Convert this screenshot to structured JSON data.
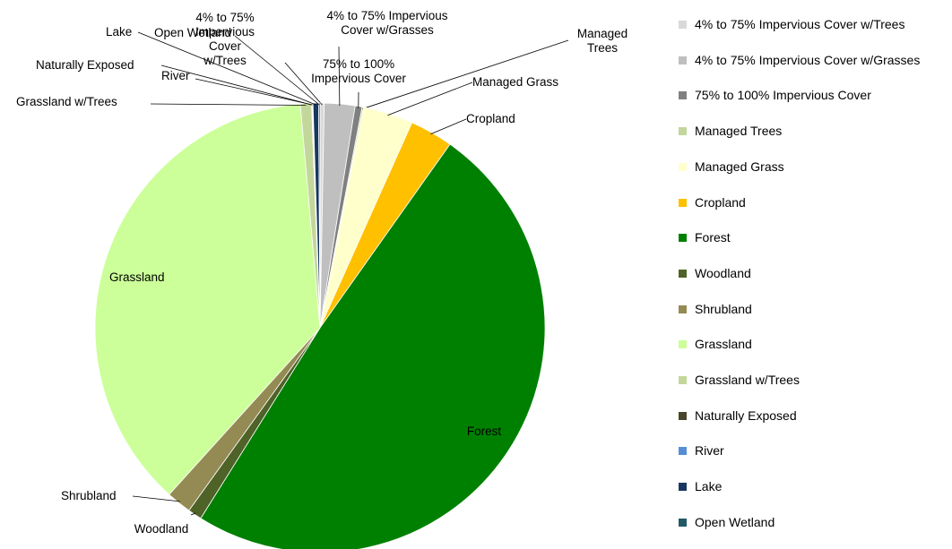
{
  "chart_data": {
    "type": "pie",
    "categories": [
      "4% to 75% Impervious Cover w/Trees",
      "4% to 75% Impervious Cover w/Grasses",
      "75% to 100% Impervious Cover",
      "Managed Trees",
      "Managed Grass",
      "Cropland",
      "Forest",
      "Woodland",
      "Shrubland",
      "Grassland",
      "Grassland w/Trees",
      "Naturally Exposed",
      "River",
      "Lake",
      "Open Wetland"
    ],
    "values": [
      0.3,
      2.2,
      0.5,
      0.1,
      3.6,
      3.1,
      49.1,
      1.0,
      1.8,
      36.9,
      0.8,
      0.05,
      0.05,
      0.4,
      0.1
    ],
    "colors": [
      "#d9d9d9",
      "#bfbfbf",
      "#808080",
      "#c3d69b",
      "#ffffcc",
      "#ffc000",
      "#008000",
      "#4f6228",
      "#948a54",
      "#ccff99",
      "#c4d79b",
      "#4a452a",
      "#558ed5",
      "#17375e",
      "#215968"
    ],
    "legend": "right"
  }
}
